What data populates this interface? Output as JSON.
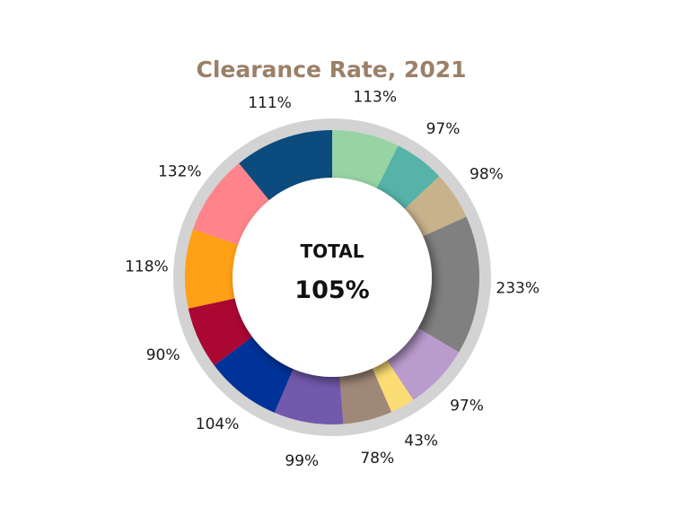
{
  "chart_data": {
    "type": "pie",
    "variant": "donut",
    "title": "Clearance Rate, 2021",
    "title_color": "#9b8068",
    "center": {
      "label": "TOTAL",
      "value": "105%"
    },
    "slices": [
      {
        "value_label": "113%",
        "share": 0.074,
        "color": "#97d4a4"
      },
      {
        "value_label": "97%",
        "share": 0.0555,
        "color": "#55b3a8"
      },
      {
        "value_label": "98%",
        "share": 0.053,
        "color": "#c8b28c"
      },
      {
        "value_label": "233%",
        "share": 0.1525,
        "color": "#808080"
      },
      {
        "value_label": "97%",
        "share": 0.072,
        "color": "#b99bcd"
      },
      {
        "value_label": "43%",
        "share": 0.027,
        "color": "#fcdc74"
      },
      {
        "value_label": "78%",
        "share": 0.054,
        "color": "#a08878"
      },
      {
        "value_label": "99%",
        "share": 0.076,
        "color": "#7259ac"
      },
      {
        "value_label": "104%",
        "share": 0.084,
        "color": "#003399"
      },
      {
        "value_label": "90%",
        "share": 0.068,
        "color": "#ab0733"
      },
      {
        "value_label": "118%",
        "share": 0.087,
        "color": "#ffa015"
      },
      {
        "value_label": "132%",
        "share": 0.088,
        "color": "#ff838a"
      },
      {
        "value_label": "111%",
        "share": 0.109,
        "color": "#0b4b7e"
      }
    ],
    "outer_ring_color": "#d3d3d3",
    "legend": "none"
  }
}
